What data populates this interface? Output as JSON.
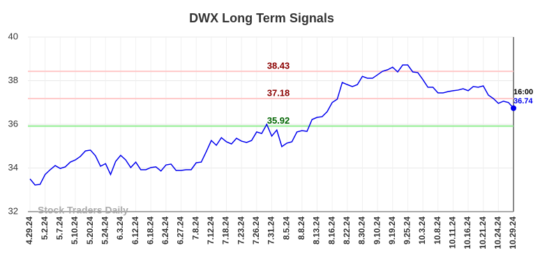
{
  "chart_data": {
    "type": "line",
    "title": "DWX Long Term Signals",
    "watermark": "Stock Traders Daily",
    "x": [
      "4.29.24",
      null,
      null,
      "5.2.24",
      null,
      null,
      "5.7.24",
      null,
      null,
      "5.10.24",
      null,
      null,
      "5.20.24",
      null,
      null,
      "5.24.24",
      null,
      null,
      "6.3.24",
      null,
      null,
      "6.12.24",
      null,
      null,
      "6.18.24",
      null,
      null,
      "6.24.24",
      null,
      null,
      "6.27.24",
      null,
      null,
      "7.8.24",
      null,
      null,
      "7.12.24",
      null,
      null,
      "7.18.24",
      null,
      null,
      "7.23.24",
      null,
      null,
      "7.26.24",
      null,
      null,
      "7.31.24",
      null,
      null,
      "8.5.24",
      null,
      null,
      "8.8.24",
      null,
      null,
      "8.13.24",
      null,
      null,
      "8.16.24",
      null,
      null,
      "8.22.24",
      null,
      null,
      "8.30.24",
      null,
      null,
      "9.10.24",
      null,
      null,
      "9.19.24",
      null,
      null,
      "9.25.24",
      null,
      null,
      "10.3.24",
      null,
      null,
      "10.8.24",
      null,
      null,
      "10.11.24",
      null,
      null,
      "10.16.24",
      null,
      null,
      "10.21.24",
      null,
      null,
      "10.24.24",
      null,
      null,
      "10.29.24"
    ],
    "values": [
      33.5,
      33.22,
      33.25,
      33.7,
      33.92,
      34.11,
      33.98,
      34.05,
      34.27,
      34.37,
      34.53,
      34.78,
      34.82,
      34.56,
      34.08,
      34.2,
      33.7,
      34.3,
      34.58,
      34.37,
      34.02,
      34.27,
      33.92,
      33.92,
      34.02,
      34.05,
      33.86,
      34.14,
      34.18,
      33.89,
      33.89,
      33.92,
      33.92,
      34.24,
      34.27,
      34.75,
      35.26,
      35.04,
      35.39,
      35.2,
      35.1,
      35.36,
      35.23,
      35.17,
      35.26,
      35.65,
      35.58,
      36.0,
      35.46,
      35.74,
      34.98,
      35.14,
      35.2,
      35.65,
      35.71,
      35.68,
      36.22,
      36.32,
      36.35,
      36.58,
      37.0,
      37.15,
      37.92,
      37.82,
      37.73,
      37.82,
      38.2,
      38.11,
      38.11,
      38.27,
      38.43,
      38.5,
      38.62,
      38.4,
      38.72,
      38.72,
      38.4,
      38.37,
      38.05,
      37.7,
      37.7,
      37.44,
      37.44,
      37.5,
      37.54,
      37.57,
      37.63,
      37.54,
      37.73,
      37.7,
      37.76,
      37.34,
      37.18,
      36.96,
      37.06,
      37.0,
      36.74
    ],
    "color": "#0000ee",
    "last_time": "16:00",
    "hlines": [
      {
        "value": 38.43,
        "color": "#ffc8c8",
        "label_color": "#8b0000"
      },
      {
        "value": 37.18,
        "color": "#ffc8c8",
        "label_color": "#8b0000"
      },
      {
        "value": 35.92,
        "color": "#90ee90",
        "label_color": "#006400"
      }
    ],
    "ylim": [
      32,
      40
    ],
    "yticks": [
      32,
      34,
      36,
      38,
      40
    ],
    "grid": true
  }
}
